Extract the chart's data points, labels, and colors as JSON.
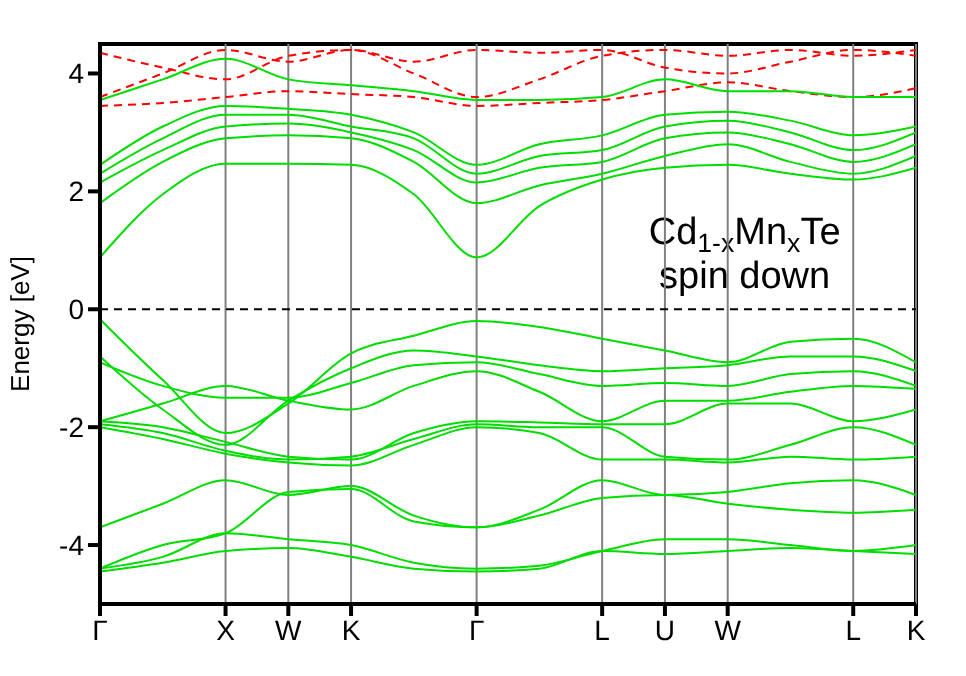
{
  "chart_data": {
    "type": "line",
    "ylabel": "Energy [eV]",
    "annotations": [
      "Cd$_{1-x}$Mn$_{x}$Te",
      "spin down"
    ],
    "categories": [
      "Γ",
      null,
      "X",
      "W",
      "K",
      null,
      "Γ",
      null,
      "L",
      "U",
      "W",
      null,
      "L",
      "K"
    ],
    "ylim": [
      -5,
      4.5
    ],
    "yticks": [
      -4,
      -2,
      0,
      2,
      4
    ],
    "grid": "x",
    "marker": "none",
    "ref_lines": [
      {
        "axis": "y",
        "value": 0,
        "color": "#000000",
        "line_style": "dashed"
      }
    ],
    "series": [
      {
        "color": "#ff0000",
        "line_style": "dashed",
        "values": [
          3.45,
          3.5,
          3.6,
          3.7,
          3.65,
          3.6,
          3.45,
          3.5,
          3.55,
          3.7,
          3.85,
          3.7,
          3.6,
          3.75
        ]
      },
      {
        "color": "#ff0000",
        "line_style": "dashed",
        "values": [
          3.6,
          4.0,
          4.4,
          4.2,
          4.4,
          4.0,
          3.6,
          3.9,
          4.3,
          4.4,
          4.3,
          4.4,
          4.3,
          4.4
        ]
      },
      {
        "color": "#ff0000",
        "line_style": "dashed",
        "values": [
          4.35,
          4.1,
          3.9,
          4.3,
          4.4,
          4.2,
          4.4,
          4.35,
          4.4,
          4.1,
          4.0,
          4.2,
          4.4,
          4.3
        ]
      },
      {
        "color": "#00dd00",
        "line_style": "solid",
        "values": [
          0.88,
          1.95,
          2.47,
          2.47,
          2.45,
          1.95,
          0.88,
          1.75,
          2.2,
          2.4,
          2.45,
          2.3,
          2.2,
          2.4
        ]
      },
      {
        "color": "#00dd00",
        "line_style": "solid",
        "values": [
          1.8,
          2.5,
          2.9,
          2.95,
          2.9,
          2.5,
          1.8,
          2.1,
          2.3,
          2.6,
          2.8,
          2.5,
          2.3,
          2.6
        ]
      },
      {
        "color": "#00dd00",
        "line_style": "solid",
        "values": [
          2.15,
          2.7,
          3.1,
          3.15,
          3.0,
          2.7,
          2.15,
          2.4,
          2.5,
          2.9,
          3.0,
          2.8,
          2.5,
          2.8
        ]
      },
      {
        "color": "#00dd00",
        "line_style": "solid",
        "values": [
          2.3,
          2.9,
          3.3,
          3.3,
          3.1,
          2.9,
          2.3,
          2.6,
          2.7,
          3.1,
          3.2,
          3.0,
          2.7,
          3.0
        ]
      },
      {
        "color": "#00dd00",
        "line_style": "solid",
        "values": [
          2.45,
          3.1,
          3.45,
          3.4,
          3.3,
          3.0,
          2.45,
          2.8,
          2.95,
          3.3,
          3.35,
          3.2,
          2.95,
          3.1
        ]
      },
      {
        "color": "#00dd00",
        "line_style": "solid",
        "values": [
          3.55,
          3.9,
          4.25,
          3.9,
          3.8,
          3.7,
          3.55,
          3.55,
          3.6,
          3.9,
          3.7,
          3.7,
          3.6,
          3.6
        ]
      },
      {
        "color": "#00dd00",
        "line_style": "solid",
        "values": [
          -0.17,
          -1.2,
          -2.1,
          -1.6,
          -0.75,
          -0.45,
          -0.2,
          -0.3,
          -0.5,
          -0.7,
          -0.9,
          -0.55,
          -0.5,
          -0.9
        ]
      },
      {
        "color": "#00dd00",
        "line_style": "solid",
        "values": [
          -0.8,
          -1.7,
          -2.3,
          -1.55,
          -1.0,
          -0.7,
          -0.8,
          -0.95,
          -1.05,
          -1.0,
          -0.95,
          -0.8,
          -0.8,
          -1.05
        ]
      },
      {
        "color": "#00dd00",
        "line_style": "solid",
        "values": [
          -0.9,
          -1.3,
          -1.5,
          -1.5,
          -1.25,
          -0.95,
          -0.9,
          -1.1,
          -1.3,
          -1.25,
          -1.3,
          -1.1,
          -1.05,
          -1.3
        ]
      },
      {
        "color": "#00dd00",
        "line_style": "solid",
        "values": [
          -1.9,
          -1.6,
          -1.3,
          -1.55,
          -1.7,
          -1.3,
          -1.05,
          -1.4,
          -1.9,
          -1.55,
          -1.55,
          -1.4,
          -1.3,
          -1.35
        ]
      },
      {
        "color": "#00dd00",
        "line_style": "solid",
        "values": [
          -1.9,
          -2.0,
          -2.25,
          -2.5,
          -2.55,
          -2.1,
          -1.9,
          -1.92,
          -1.95,
          -1.95,
          -1.6,
          -1.6,
          -1.9,
          -1.7
        ]
      },
      {
        "color": "#00dd00",
        "line_style": "solid",
        "values": [
          -1.95,
          -2.1,
          -2.4,
          -2.55,
          -2.5,
          -2.2,
          -1.95,
          -2.0,
          -2.0,
          -2.5,
          -2.55,
          -2.3,
          -2.0,
          -2.3
        ]
      },
      {
        "color": "#00dd00",
        "line_style": "solid",
        "values": [
          -2.0,
          -2.2,
          -2.45,
          -2.6,
          -2.65,
          -2.3,
          -2.0,
          -2.1,
          -2.55,
          -2.55,
          -2.6,
          -2.5,
          -2.55,
          -2.5
        ]
      },
      {
        "color": "#00dd00",
        "line_style": "solid",
        "values": [
          -3.7,
          -3.3,
          -2.9,
          -3.15,
          -3.0,
          -3.5,
          -3.7,
          -3.4,
          -2.9,
          -3.15,
          -3.1,
          -2.95,
          -2.9,
          -3.15
        ]
      },
      {
        "color": "#00dd00",
        "line_style": "solid",
        "values": [
          -4.4,
          -4.0,
          -3.8,
          -3.1,
          -3.05,
          -3.6,
          -3.7,
          -3.5,
          -3.2,
          -3.15,
          -3.3,
          -3.4,
          -3.45,
          -3.4
        ]
      },
      {
        "color": "#00dd00",
        "line_style": "solid",
        "values": [
          -4.4,
          -4.2,
          -3.8,
          -3.9,
          -4.0,
          -4.3,
          -4.4,
          -4.35,
          -4.1,
          -3.9,
          -3.9,
          -4.0,
          -4.1,
          -4.0
        ]
      },
      {
        "color": "#00dd00",
        "line_style": "solid",
        "values": [
          -4.45,
          -4.3,
          -4.1,
          -4.05,
          -4.2,
          -4.4,
          -4.45,
          -4.4,
          -4.1,
          -4.15,
          -4.1,
          -4.05,
          -4.1,
          -4.15
        ]
      }
    ]
  }
}
